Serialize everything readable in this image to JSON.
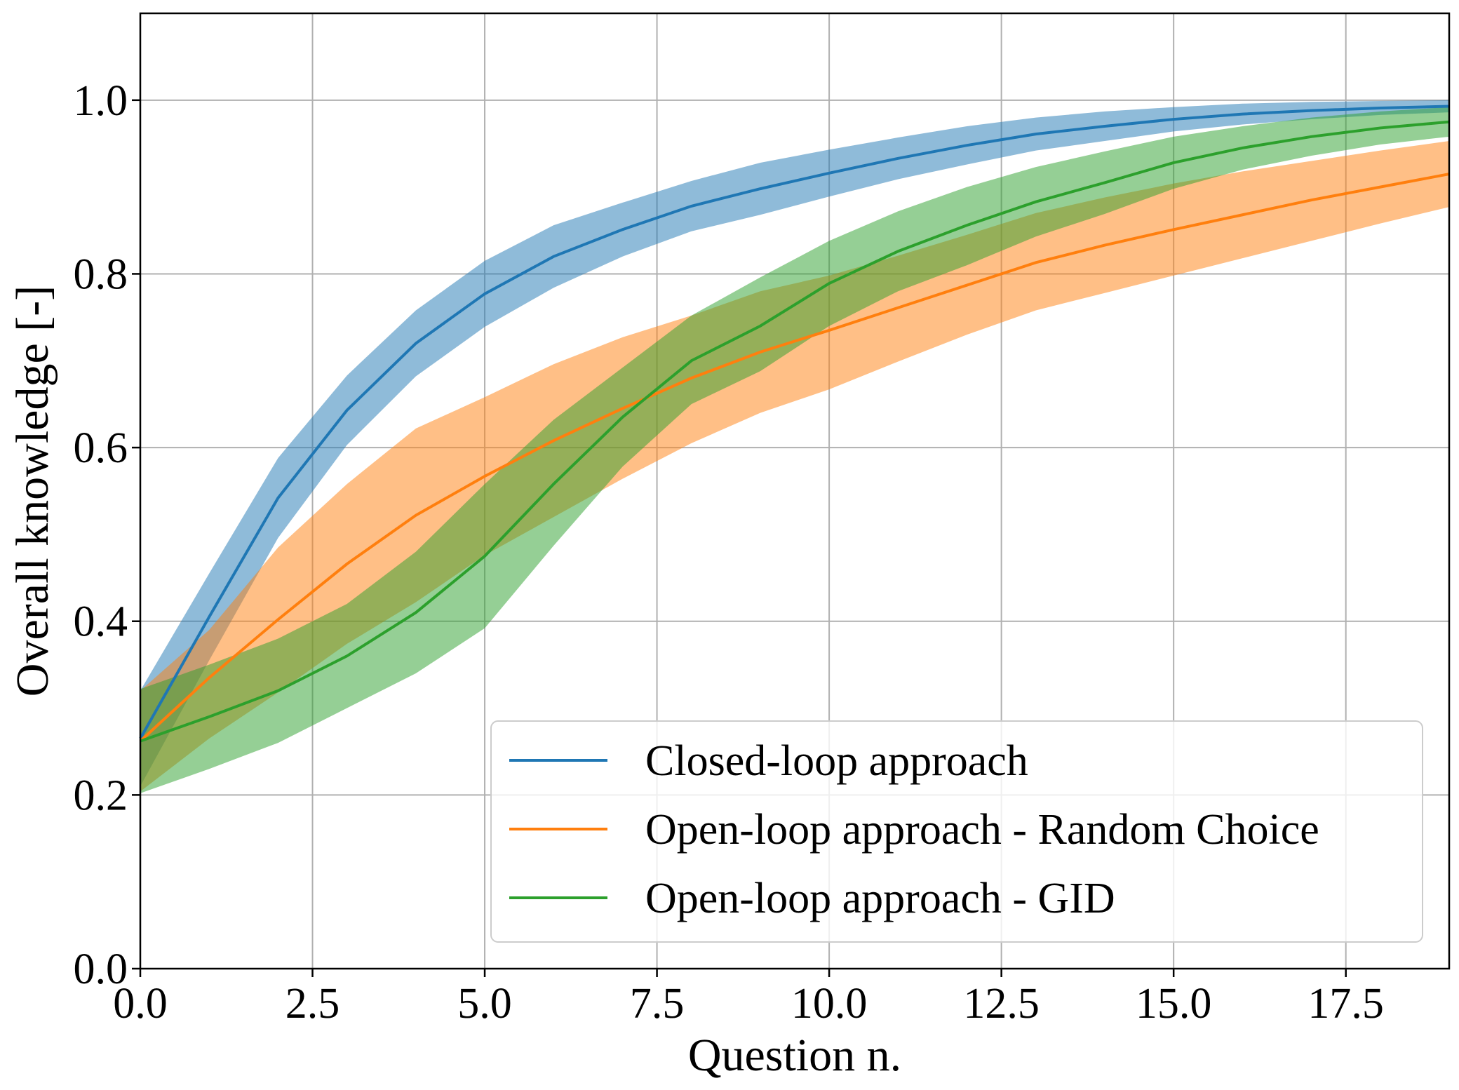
{
  "chart_data": {
    "type": "line",
    "xlabel": "Question n.",
    "ylabel": "Overall knowledge [-]",
    "xlim": [
      0,
      19
    ],
    "ylim": [
      0,
      1.1
    ],
    "x_ticks": [
      0,
      2.5,
      5,
      7.5,
      10,
      12.5,
      15,
      17.5
    ],
    "x_tick_labels": [
      "0.0",
      "2.5",
      "5.0",
      "7.5",
      "10.0",
      "12.5",
      "15.0",
      "17.5"
    ],
    "y_ticks": [
      0,
      0.2,
      0.4,
      0.6,
      0.8,
      1.0
    ],
    "y_tick_labels": [
      "0.0",
      "0.2",
      "0.4",
      "0.6",
      "0.8",
      "1.0"
    ],
    "grid": true,
    "legend_position": "lower-right",
    "x": [
      0,
      1,
      2,
      3,
      4,
      5,
      6,
      7,
      8,
      9,
      10,
      11,
      12,
      13,
      14,
      15,
      16,
      17,
      18,
      19
    ],
    "series": [
      {
        "name": "Closed-loop approach",
        "color": "#1f77b4",
        "values": [
          0.265,
          0.405,
          0.542,
          0.643,
          0.72,
          0.777,
          0.82,
          0.851,
          0.878,
          0.898,
          0.916,
          0.933,
          0.948,
          0.961,
          0.97,
          0.978,
          0.984,
          0.988,
          0.991,
          0.993
        ],
        "upper": [
          0.32,
          0.455,
          0.588,
          0.683,
          0.758,
          0.815,
          0.856,
          0.882,
          0.907,
          0.928,
          0.943,
          0.957,
          0.97,
          0.98,
          0.987,
          0.992,
          0.996,
          0.998,
          0.999,
          1.0
        ],
        "lower": [
          0.21,
          0.355,
          0.496,
          0.603,
          0.682,
          0.739,
          0.784,
          0.82,
          0.849,
          0.868,
          0.889,
          0.909,
          0.926,
          0.942,
          0.953,
          0.964,
          0.972,
          0.978,
          0.983,
          0.986
        ]
      },
      {
        "name": "Open-loop approach - Random Choice",
        "color": "#ff7f0e",
        "values": [
          0.262,
          0.335,
          0.402,
          0.466,
          0.522,
          0.567,
          0.608,
          0.645,
          0.68,
          0.71,
          0.735,
          0.761,
          0.787,
          0.813,
          0.833,
          0.851,
          0.868,
          0.885,
          0.9,
          0.915
        ],
        "upper": [
          0.32,
          0.39,
          0.485,
          0.558,
          0.622,
          0.658,
          0.696,
          0.727,
          0.752,
          0.78,
          0.798,
          0.821,
          0.845,
          0.87,
          0.888,
          0.904,
          0.918,
          0.93,
          0.942,
          0.953
        ],
        "lower": [
          0.204,
          0.265,
          0.318,
          0.374,
          0.422,
          0.476,
          0.52,
          0.564,
          0.605,
          0.64,
          0.667,
          0.699,
          0.73,
          0.758,
          0.778,
          0.798,
          0.818,
          0.838,
          0.858,
          0.877
        ]
      },
      {
        "name": "Open-loop approach - GID",
        "color": "#2ca02c",
        "values": [
          0.262,
          0.29,
          0.32,
          0.36,
          0.41,
          0.475,
          0.558,
          0.635,
          0.7,
          0.74,
          0.789,
          0.826,
          0.856,
          0.883,
          0.905,
          0.928,
          0.945,
          0.958,
          0.968,
          0.975
        ],
        "upper": [
          0.322,
          0.35,
          0.38,
          0.42,
          0.48,
          0.558,
          0.632,
          0.692,
          0.752,
          0.796,
          0.838,
          0.872,
          0.9,
          0.923,
          0.941,
          0.958,
          0.97,
          0.98,
          0.987,
          0.992
        ],
        "lower": [
          0.202,
          0.23,
          0.26,
          0.3,
          0.34,
          0.392,
          0.487,
          0.578,
          0.65,
          0.688,
          0.74,
          0.78,
          0.81,
          0.843,
          0.869,
          0.898,
          0.92,
          0.936,
          0.949,
          0.958
        ]
      }
    ]
  }
}
